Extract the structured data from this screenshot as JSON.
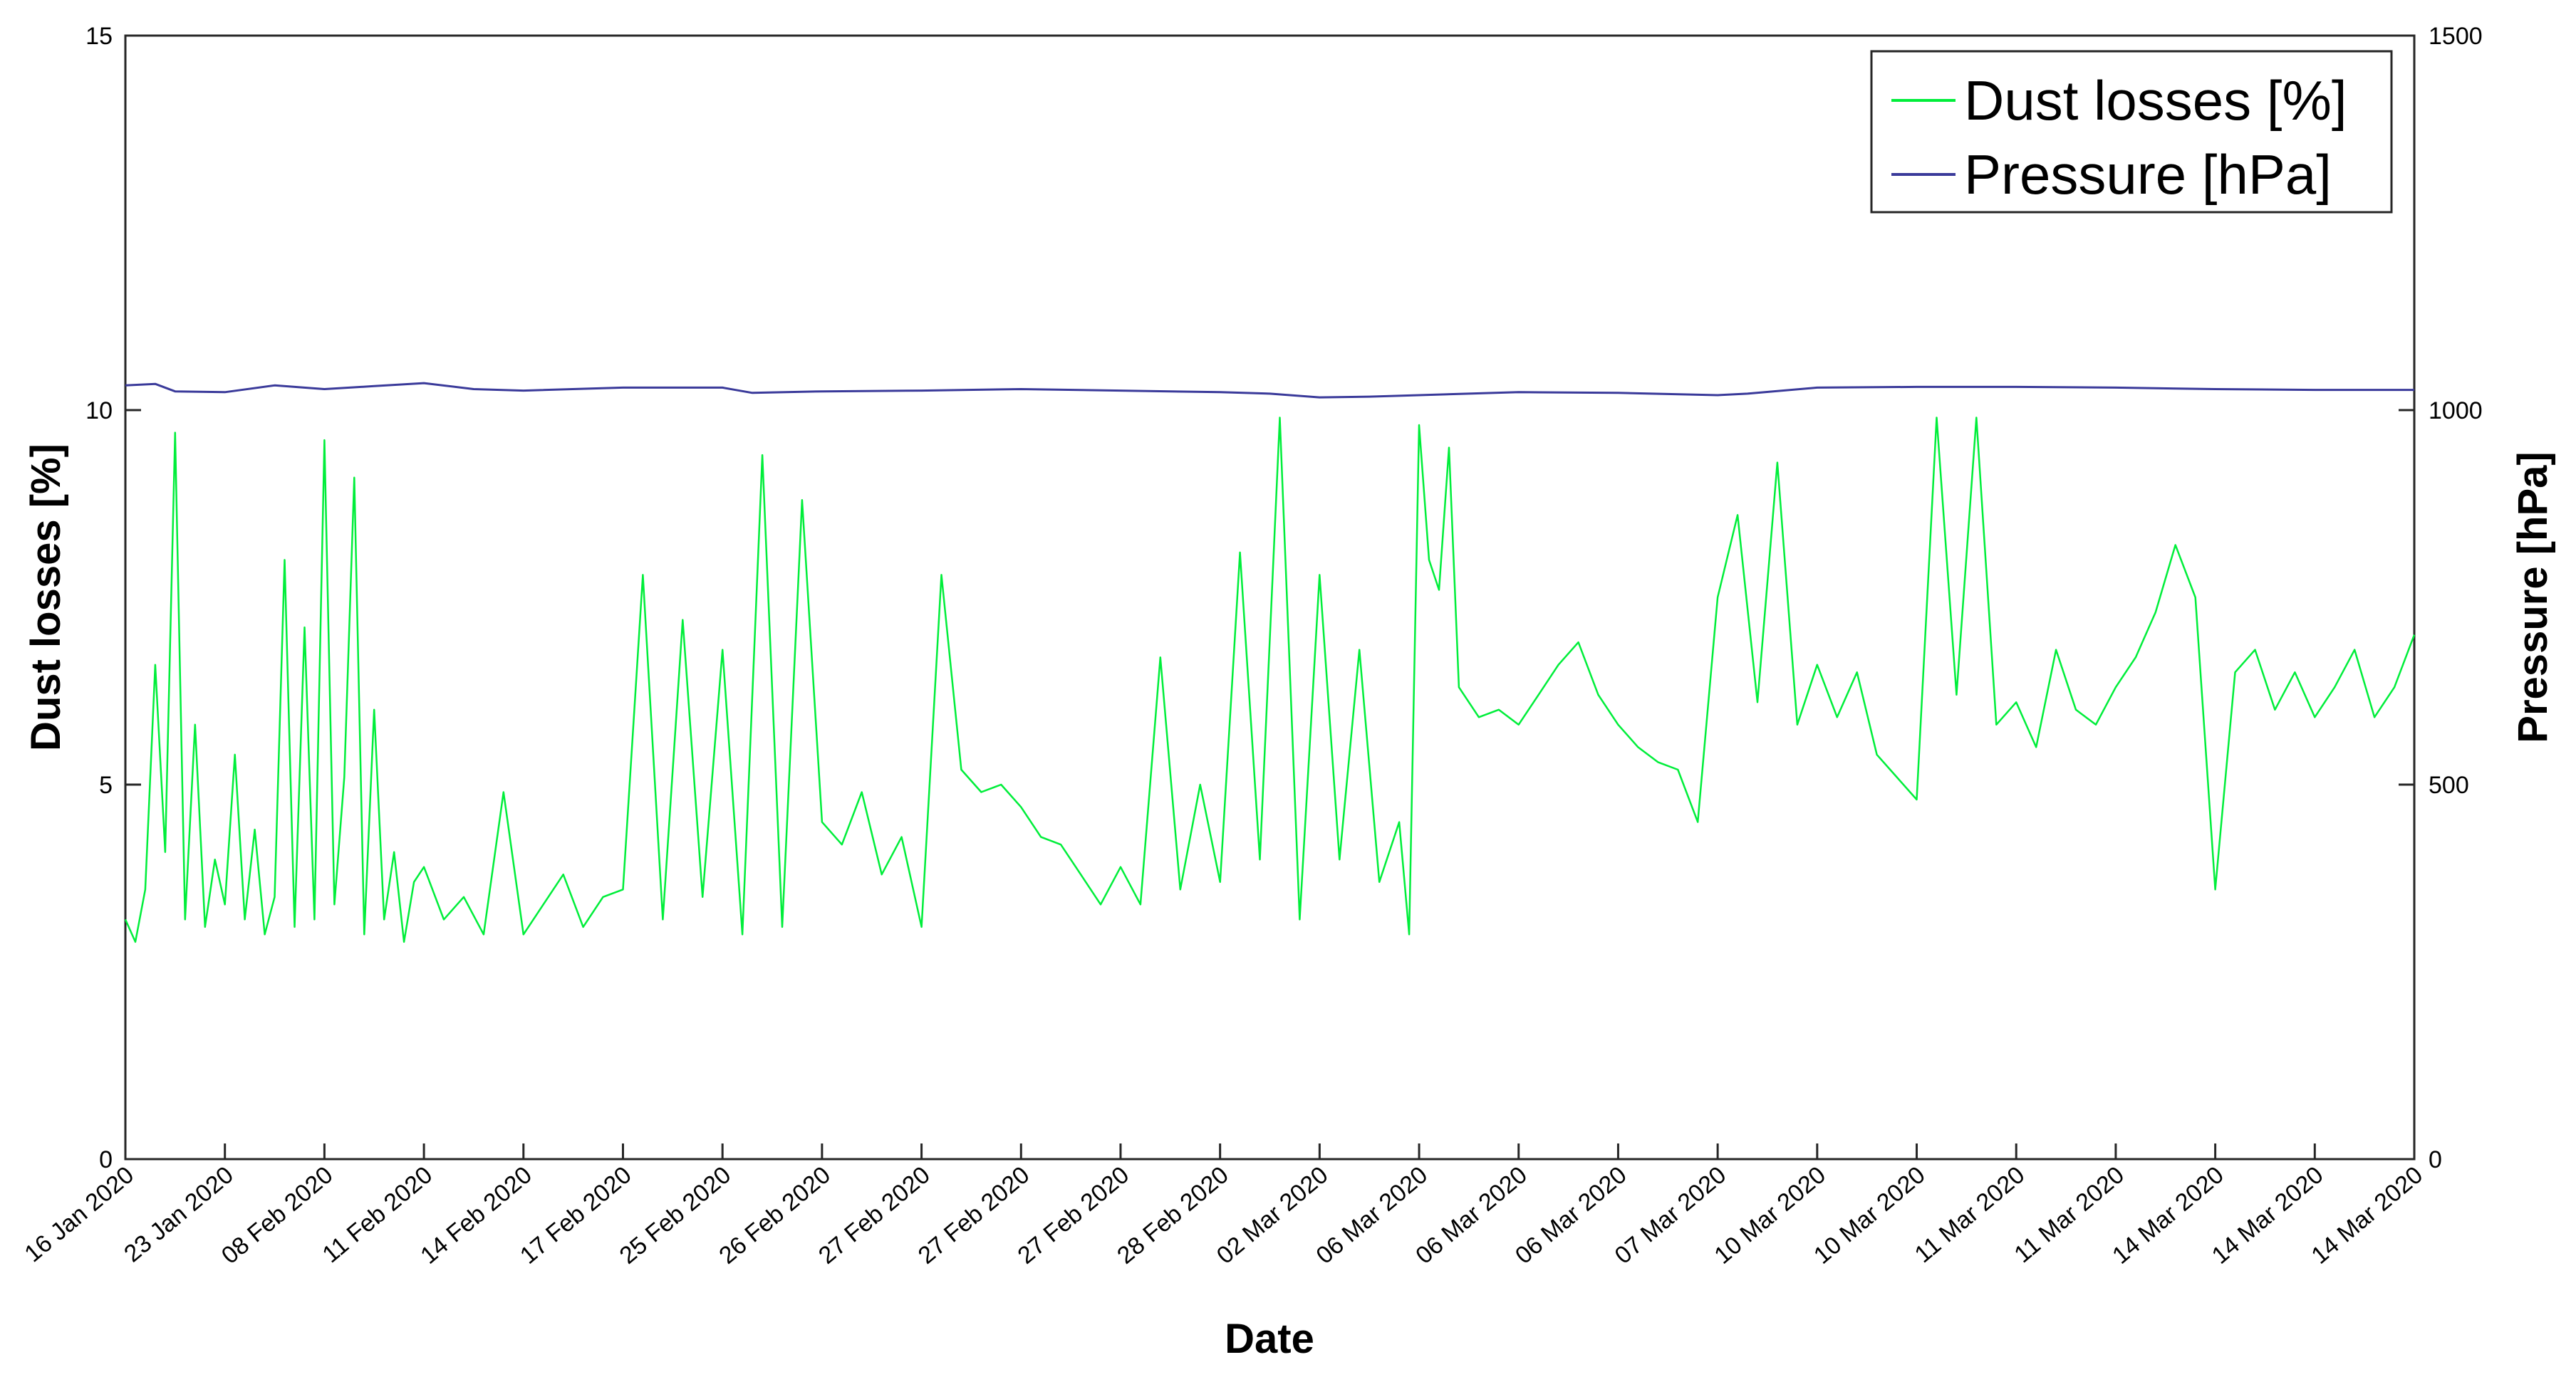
{
  "chart_data": {
    "type": "line",
    "xlabel": "Date",
    "ylabel_left": "Dust losses [%]",
    "ylabel_right": "Pressure [hPa]",
    "ylim_left": [
      0,
      15
    ],
    "ylim_right": [
      0,
      1500
    ],
    "yticks_left": [
      "0",
      "5",
      "10",
      "15"
    ],
    "yticks_right": [
      "0",
      "500",
      "1000",
      "1500"
    ],
    "x_tick_labels": [
      "16 Jan 2020",
      "23 Jan 2020",
      "08 Feb 2020",
      "11 Feb 2020",
      "14 Feb 2020",
      "17 Feb 2020",
      "25 Feb 2020",
      "26 Feb 2020",
      "27 Feb 2020",
      "27 Feb 2020",
      "27 Feb 2020",
      "28 Feb 2020",
      "02 Mar 2020",
      "06 Mar 2020",
      "06 Mar 2020",
      "06 Mar 2020",
      "07 Mar 2020",
      "10 Mar 2020",
      "10 Mar 2020",
      "11 Mar 2020",
      "11 Mar 2020",
      "14 Mar 2020",
      "14 Mar 2020",
      "14 Mar 2020"
    ],
    "grid": false,
    "legend_position": "top-right",
    "series": [
      {
        "name": "Dust losses [%]",
        "axis": "left",
        "color": "#00ee3a",
        "x_tick_index": [
          0,
          0.1,
          0.2,
          0.3,
          0.4,
          0.5,
          0.6,
          0.7,
          0.8,
          0.9,
          1,
          1.1,
          1.2,
          1.3,
          1.4,
          1.5,
          1.6,
          1.7,
          1.8,
          1.9,
          2,
          2.1,
          2.2,
          2.3,
          2.4,
          2.5,
          2.6,
          2.7,
          2.8,
          2.9,
          3,
          3.2,
          3.4,
          3.6,
          3.8,
          4,
          4.2,
          4.4,
          4.6,
          4.8,
          5,
          5.2,
          5.4,
          5.6,
          5.8,
          6,
          6.2,
          6.4,
          6.6,
          6.8,
          7,
          7.2,
          7.4,
          7.6,
          7.8,
          8,
          8.2,
          8.4,
          8.6,
          8.8,
          9,
          9.2,
          9.4,
          9.6,
          9.8,
          10,
          10.2,
          10.4,
          10.6,
          10.8,
          11,
          11.2,
          11.4,
          11.6,
          11.8,
          12,
          12.2,
          12.4,
          12.6,
          12.8,
          12.9,
          13,
          13.1,
          13.2,
          13.3,
          13.4,
          13.6,
          13.8,
          14,
          14.2,
          14.4,
          14.6,
          14.8,
          15,
          15.2,
          15.4,
          15.6,
          15.8,
          16,
          16.2,
          16.4,
          16.6,
          16.8,
          17,
          17.2,
          17.4,
          17.6,
          17.8,
          18,
          18.2,
          18.4,
          18.6,
          18.8,
          19,
          19.2,
          19.4,
          19.6,
          19.8,
          20,
          20.2,
          20.4,
          20.6,
          20.8,
          21,
          21.2,
          21.4,
          21.6,
          21.8,
          22,
          22.2,
          22.4,
          22.6,
          22.8,
          23
        ],
        "values": [
          3.2,
          2.9,
          3.6,
          6.6,
          4.1,
          9.7,
          3.2,
          5.8,
          3.1,
          4.0,
          3.4,
          5.4,
          3.2,
          4.4,
          3.0,
          3.5,
          8.0,
          3.1,
          7.1,
          3.2,
          9.6,
          3.4,
          5.1,
          9.1,
          3.0,
          6.0,
          3.2,
          4.1,
          2.9,
          3.7,
          3.9,
          3.2,
          3.5,
          3.0,
          4.9,
          3.0,
          3.4,
          3.8,
          3.1,
          3.5,
          3.6,
          7.8,
          3.2,
          7.2,
          3.5,
          6.8,
          3.0,
          9.4,
          3.1,
          8.8,
          4.5,
          4.2,
          4.9,
          3.8,
          4.3,
          3.1,
          7.8,
          5.2,
          4.9,
          5.0,
          4.7,
          4.3,
          4.2,
          3.8,
          3.4,
          3.9,
          3.4,
          6.7,
          3.6,
          5.0,
          3.7,
          8.1,
          4.0,
          9.9,
          3.2,
          7.8,
          4.0,
          6.8,
          3.7,
          4.5,
          3.0,
          9.8,
          8.0,
          7.6,
          9.5,
          6.3,
          5.9,
          6.0,
          5.8,
          6.2,
          6.6,
          6.9,
          6.2,
          5.8,
          5.5,
          5.3,
          5.2,
          4.5,
          7.5,
          8.6,
          6.1,
          9.3,
          5.8,
          6.6,
          5.9,
          6.5,
          5.4,
          5.1,
          4.8,
          9.9,
          6.2,
          9.9,
          5.8,
          6.1,
          5.5,
          6.8,
          6.0,
          5.8,
          6.3,
          6.7,
          7.3,
          8.2,
          7.5,
          3.6,
          6.5,
          6.8,
          6.0,
          6.5,
          5.9,
          6.3,
          6.8,
          5.9,
          6.3,
          7.0,
          7.1,
          7.6
        ]
      },
      {
        "name": "Pressure [hPa]",
        "axis": "right",
        "color": "#3a3a9a",
        "x_tick_index": [
          0,
          0.3,
          0.5,
          1,
          1.5,
          2,
          2.5,
          3,
          3.5,
          4,
          5,
          6,
          6.3,
          7,
          8,
          9,
          10,
          11,
          11.5,
          12,
          12.5,
          13,
          14,
          15,
          16,
          16.3,
          17,
          18,
          19,
          20,
          21,
          22,
          23
        ],
        "values": [
          1033,
          1035,
          1025,
          1024,
          1033,
          1028,
          1032,
          1036,
          1028,
          1026,
          1030,
          1030,
          1023,
          1025,
          1026,
          1028,
          1026,
          1024,
          1022,
          1017,
          1018,
          1020,
          1024,
          1023,
          1020,
          1022,
          1030,
          1031,
          1031,
          1030,
          1028,
          1027,
          1027
        ]
      }
    ]
  }
}
